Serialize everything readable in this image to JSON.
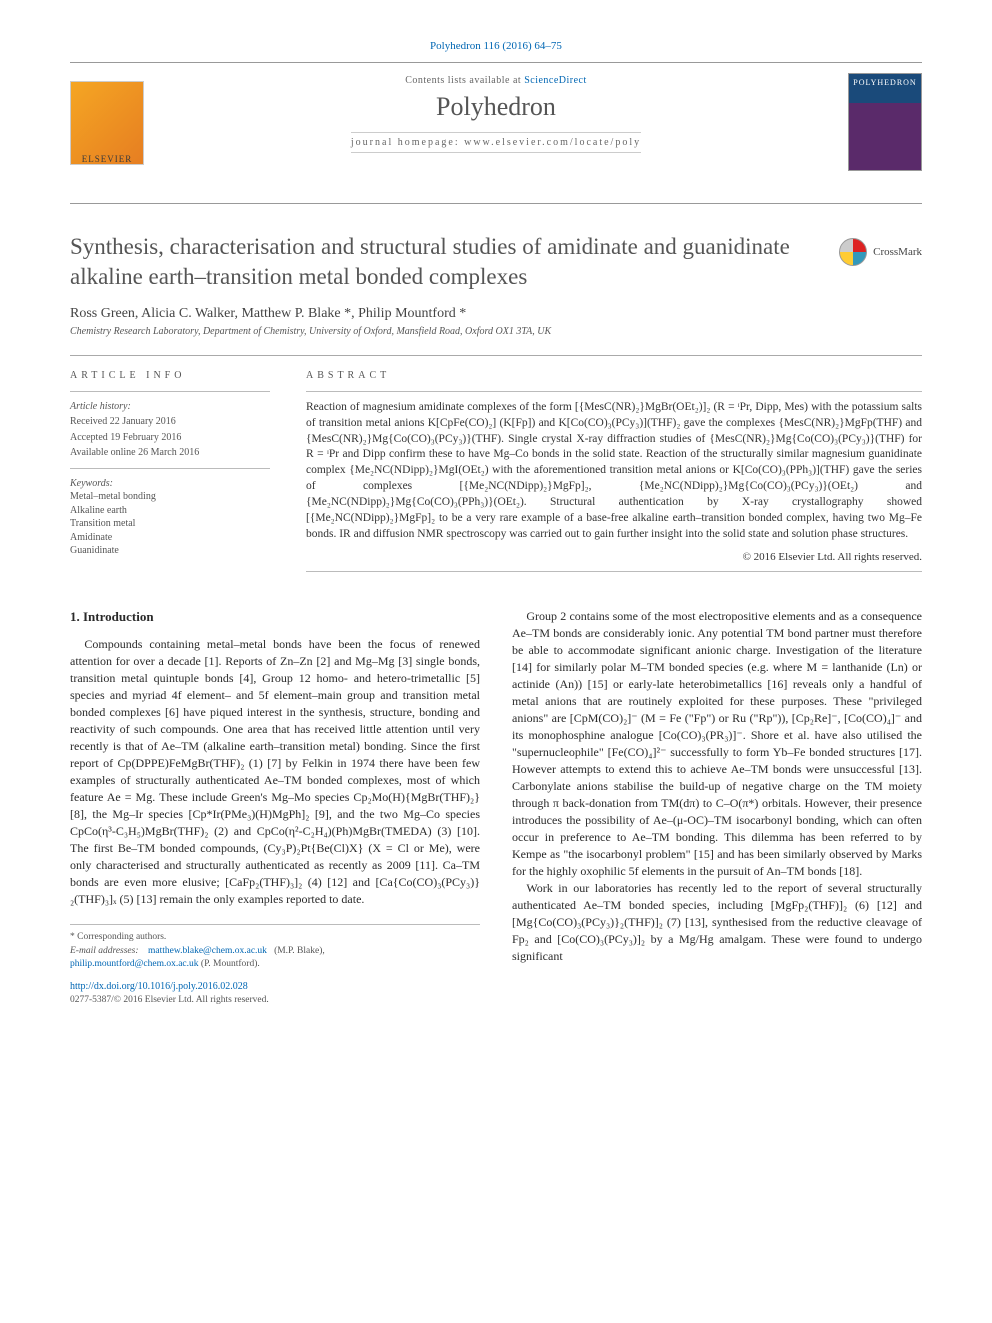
{
  "citation": "Polyhedron 116 (2016) 64–75",
  "header": {
    "contents_prefix": "Contents lists available at ",
    "contents_link": "ScienceDirect",
    "journal": "Polyhedron",
    "homepage_prefix": "journal homepage: ",
    "homepage_url": "www.elsevier.com/locate/poly",
    "elsevier_label": "ELSEVIER",
    "cover_label": "POLYHEDRON"
  },
  "crossmark": "CrossMark",
  "title": "Synthesis, characterisation and structural studies of amidinate and guanidinate alkaline earth–transition metal bonded complexes",
  "authors_html": "Ross Green, Alicia C. Walker, Matthew P. Blake *, Philip Mountford *",
  "affiliation": "Chemistry Research Laboratory, Department of Chemistry, University of Oxford, Mansfield Road, Oxford OX1 3TA, UK",
  "article_info": {
    "heading": "ARTICLE INFO",
    "history_label": "Article history:",
    "received": "Received 22 January 2016",
    "accepted": "Accepted 19 February 2016",
    "online": "Available online 26 March 2016",
    "keywords_label": "Keywords:",
    "keywords": [
      "Metal–metal bonding",
      "Alkaline earth",
      "Transition metal",
      "Amidinate",
      "Guanidinate"
    ]
  },
  "abstract": {
    "heading": "ABSTRACT",
    "text": "Reaction of magnesium amidinate complexes of the form [{MesC(NR)₂}MgBr(OEt₂)]₂ (R = ᶦPr, Dipp, Mes) with the potassium salts of transition metal anions K[CpFe(CO)₂] (K[Fp]) and K[Co(CO)₃(PCy₃)](THF)₂ gave the complexes {MesC(NR)₂}MgFp(THF) and {MesC(NR)₂}Mg{Co(CO)₃(PCy₃)}(THF). Single crystal X-ray diffraction studies of {MesC(NR)₂}Mg{Co(CO)₃(PCy₃)}(THF) for R = ᶦPr and Dipp confirm these to have Mg–Co bonds in the solid state. Reaction of the structurally similar magnesium guanidinate complex {Me₂NC(NDipp)₂}MgI(OEt₂) with the aforementioned transition metal anions or K[Co(CO)₃(PPh₃)](THF) gave the series of complexes [{Me₂NC(NDipp)₂}MgFp]₂, {Me₂NC(NDipp)₂}Mg{Co(CO)₃(PCy₃)}(OEt₂) and {Me₂NC(NDipp)₂}Mg{Co(CO)₃(PPh₃)}(OEt₂). Structural authentication by X-ray crystallography showed [{Me₂NC(NDipp)₂}MgFp]₂ to be a very rare example of a base-free alkaline earth–transition bonded complex, having two Mg–Fe bonds. IR and diffusion NMR spectroscopy was carried out to gain further insight into the solid state and solution phase structures.",
    "copyright": "© 2016 Elsevier Ltd. All rights reserved."
  },
  "body": {
    "section_heading": "1. Introduction",
    "col1_para1": "Compounds containing metal–metal bonds have been the focus of renewed attention for over a decade [1]. Reports of Zn–Zn [2] and Mg–Mg [3] single bonds, transition metal quintuple bonds [4], Group 12 homo- and hetero-trimetallic [5] species and myriad 4f element– and 5f element–main group and transition metal bonded complexes [6] have piqued interest in the synthesis, structure, bonding and reactivity of such compounds. One area that has received little attention until very recently is that of Ae–TM (alkaline earth–transition metal) bonding. Since the first report of Cp(DPPE)FeMgBr(THF)₂ (1) [7] by Felkin in 1974 there have been few examples of structurally authenticated Ae–TM bonded complexes, most of which feature Ae = Mg. These include Green's Mg–Mo species Cp₂Mo(H){MgBr(THF)₂} [8], the Mg–Ir species [Cp*Ir(PMe₃)(H)MgPh]₂ [9], and the two Mg–Co species CpCo(η³-C₃H₅)MgBr(THF)₂ (2) and CpCo(η²-C₂H₄)(Ph)MgBr(TMEDA) (3) [10]. The first Be–TM bonded compounds, (Cy₃P)₂Pt{Be(Cl)X} (X = Cl or Me), were only characterised and structurally authenticated as recently as 2009 [11]. Ca–TM bonds are even more elusive; [CaFp₂(THF)₃]₂ (4) [12] and [Ca{Co(CO)₃(PCy₃)}₂(THF)₃]ₓ (5) [13] remain the only examples reported to date.",
    "col2_para1": "Group 2 contains some of the most electropositive elements and as a consequence Ae–TM bonds are considerably ionic. Any potential TM bond partner must therefore be able to accommodate significant anionic charge. Investigation of the literature [14] for similarly polar M–TM bonded species (e.g. where M = lanthanide (Ln) or actinide (An)) [15] or early-late heterobimetallics [16] reveals only a handful of metal anions that are routinely exploited for these purposes. These \"privileged anions\" are [CpM(CO)₂]⁻ (M = Fe (\"Fp\") or Ru (\"Rp\")), [Cp₂Re]⁻, [Co(CO)₄]⁻ and its monophosphine analogue [Co(CO)₃(PR₃)]⁻. Shore et al. have also utilised the \"supernucleophile\" [Fe(CO)₄]²⁻ successfully to form Yb–Fe bonded structures [17]. However attempts to extend this to achieve Ae–TM bonds were unsuccessful [13]. Carbonylate anions stabilise the build-up of negative charge on the TM moiety through π back-donation from TM(dπ) to C–O(π*) orbitals. However, their presence introduces the possibility of Ae–(μ-OC)–TM isocarbonyl bonding, which can often occur in preference to Ae–TM bonding. This dilemma has been referred to by Kempe as \"the isocarbonyl problem\" [15] and has been similarly observed by Marks for the highly oxophilic 5f elements in the pursuit of An–TM bonds [18].",
    "col2_para2": "Work in our laboratories has recently led to the report of several structurally authenticated Ae–TM bonded species, including [MgFp₂(THF)]₂ (6) [12] and [Mg{Co(CO)₃(PCy₃)}₂(THF)]₂ (7) [13], synthesised from the reductive cleavage of Fp₂ and [Co(CO)₃(PCy₃)]₂ by a Mg/Hg amalgam. These were found to undergo significant"
  },
  "footnotes": {
    "corr": "* Corresponding authors.",
    "email_label": "E-mail addresses:",
    "email1": "matthew.blake@chem.ox.ac.uk",
    "name1": "(M.P. Blake),",
    "email2": "philip.mountford@chem.ox.ac.uk",
    "name2": "(P. Mountford).",
    "doi": "http://dx.doi.org/10.1016/j.poly.2016.02.028",
    "issn": "0277-5387/© 2016 Elsevier Ltd. All rights reserved."
  },
  "colors": {
    "link": "#0066b3",
    "text": "#2a2a2a",
    "muted": "#555555"
  }
}
